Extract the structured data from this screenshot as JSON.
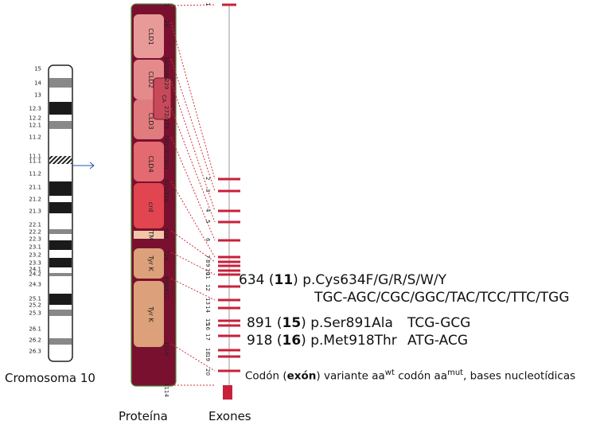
{
  "chromosome": {
    "caption": "Cromosoma 10",
    "bands": [
      "15",
      "14",
      "13",
      "12.3",
      "12.2",
      "12.1",
      "11.2",
      "11.1",
      "11.1",
      "11.2",
      "21.1",
      "21.2",
      "21.3",
      "22.1",
      "22.2",
      "22.3",
      "23.1",
      "23.2",
      "23.3",
      "24.1",
      "24.2",
      "24.3",
      "25.1",
      "25.2",
      "25.3",
      "26.1",
      "26.2",
      "26.3"
    ]
  },
  "protein": {
    "caption": "Proteína",
    "domains": [
      "CLD1",
      "CLD2",
      "CA",
      "CLD3",
      "CLD4",
      "crd",
      "TM",
      "Tyr K",
      "Tyr K"
    ],
    "positions": [
      "1",
      "28",
      "160/166",
      "229",
      "272/273",
      "380/387/401",
      "515/516",
      "634",
      "724",
      "808/812",
      "1016",
      "1114"
    ]
  },
  "exons": {
    "caption": "Exones",
    "numbers": [
      "1",
      "2",
      "3",
      "4",
      "5",
      "6",
      "7",
      "8",
      "9",
      "10",
      "11",
      "12",
      "13",
      "14",
      "15",
      "16",
      "17",
      "18",
      "19",
      "20"
    ]
  },
  "annotations": {
    "row1": {
      "codon": "634",
      "exon": "11",
      "variant": "p.Cys634F/G/R/S/W/Y",
      "bases": "TGC-AGC/CGC/GGC/TAC/TCC/TTC/TGG"
    },
    "row2": {
      "codon": "891",
      "exon": "15",
      "variant": "p.Ser891Ala",
      "bases": "TCG-GCG"
    },
    "row3": {
      "codon": "918",
      "exon": "16",
      "variant": "p.Met918Thr",
      "bases": "ATG-ACG"
    },
    "legend": {
      "codon": "Codón",
      "exon": "exón",
      "variant": "variante aa",
      "wt": "wt",
      "codon2": "codón aa",
      "mut": "mut",
      "bases": ", bases nucleotídicas"
    }
  },
  "colors": {
    "band_dark": "#1a1a1a",
    "band_gray": "#888888",
    "protein_dark": "#7a1030",
    "exon_red": "#c8203a",
    "arrow": "#2a55b0",
    "dashed": "#d0303a"
  }
}
